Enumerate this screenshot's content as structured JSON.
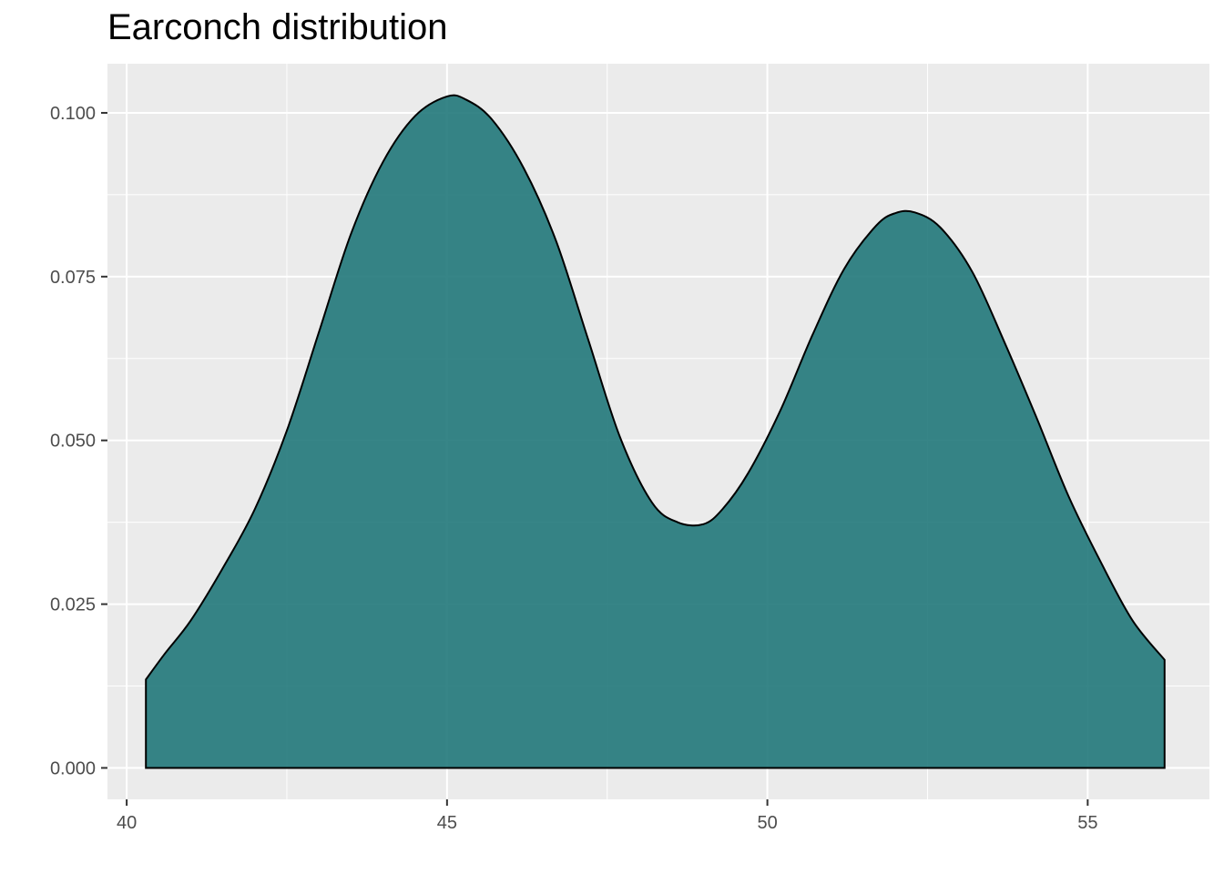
{
  "chart_data": {
    "type": "area",
    "title": "Earconch distribution",
    "xlabel": "",
    "ylabel": "",
    "xlim": [
      39.7,
      56.9
    ],
    "ylim": [
      -0.0048,
      0.1075
    ],
    "x_ticks": [
      40,
      45,
      50,
      55
    ],
    "x_tick_labels": [
      "40",
      "45",
      "50",
      "55"
    ],
    "y_ticks": [
      0,
      0.025,
      0.05,
      0.075,
      0.1
    ],
    "y_tick_labels": [
      "0.000",
      "0.025",
      "0.050",
      "0.075",
      "0.100"
    ],
    "grid": true,
    "legend": "none",
    "colors": {
      "panel_background": "#ebebeb",
      "grid_major": "#ffffff",
      "fill": "#21787a",
      "outline": "#000000",
      "tick_text": "#4d4d4d"
    },
    "series": [
      {
        "x": [
          40.3,
          40.6,
          41.0,
          41.5,
          42.0,
          42.5,
          43.0,
          43.5,
          44.0,
          44.5,
          45.0,
          45.3,
          45.7,
          46.2,
          46.7,
          47.2,
          47.7,
          48.2,
          48.6,
          49.0,
          49.3,
          49.7,
          50.2,
          50.7,
          51.2,
          51.7,
          52.0,
          52.3,
          52.7,
          53.2,
          53.7,
          54.2,
          54.7,
          55.2,
          55.7,
          56.2
        ],
        "y": [
          0.0135,
          0.0175,
          0.0225,
          0.0305,
          0.0395,
          0.0515,
          0.0665,
          0.0815,
          0.0925,
          0.0995,
          0.1025,
          0.102,
          0.099,
          0.0915,
          0.0805,
          0.0655,
          0.0505,
          0.0405,
          0.0375,
          0.0372,
          0.0395,
          0.045,
          0.0545,
          0.066,
          0.0762,
          0.0828,
          0.0847,
          0.0848,
          0.0825,
          0.0757,
          0.065,
          0.0535,
          0.0415,
          0.0315,
          0.0225,
          0.0165
        ]
      }
    ]
  }
}
